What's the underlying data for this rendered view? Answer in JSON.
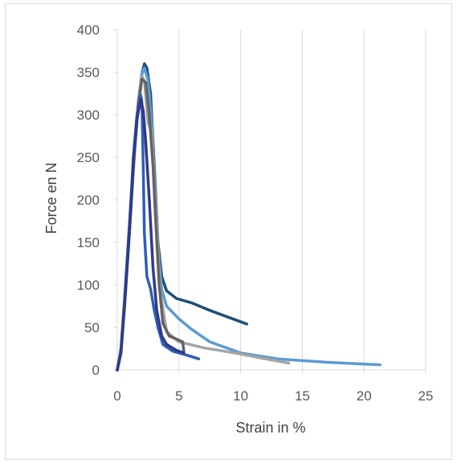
{
  "chart_data": {
    "type": "line",
    "title": "",
    "xlabel": "Strain in %",
    "ylabel": "Force en N",
    "xlim": [
      0,
      25
    ],
    "ylim": [
      0,
      400
    ],
    "xticks": [
      0,
      5,
      10,
      15,
      20,
      25
    ],
    "yticks": [
      0,
      50,
      100,
      150,
      200,
      250,
      300,
      350,
      400
    ],
    "xtick_labels": [
      "0",
      "5",
      "10",
      "15",
      "20",
      "25"
    ],
    "ytick_labels": [
      "0",
      "50",
      "100",
      "150",
      "200",
      "250",
      "300",
      "350",
      "400"
    ],
    "grid": "vertical",
    "legend": "none",
    "series": [
      {
        "color": "#1f4e79",
        "values": [
          [
            0,
            0
          ],
          [
            0.3,
            25
          ],
          [
            0.6,
            85
          ],
          [
            1.0,
            175
          ],
          [
            1.4,
            265
          ],
          [
            1.7,
            315
          ],
          [
            2.0,
            348
          ],
          [
            2.2,
            360
          ],
          [
            2.4,
            355
          ],
          [
            2.7,
            325
          ],
          [
            3.0,
            240
          ],
          [
            3.3,
            150
          ],
          [
            3.6,
            110
          ],
          [
            4.0,
            93
          ],
          [
            4.8,
            84
          ],
          [
            6.0,
            79
          ],
          [
            7.5,
            70
          ],
          [
            9.0,
            62
          ],
          [
            10.5,
            54
          ]
        ]
      },
      {
        "color": "#5b9bd5",
        "values": [
          [
            0,
            0
          ],
          [
            0.3,
            22
          ],
          [
            0.6,
            80
          ],
          [
            1.0,
            170
          ],
          [
            1.4,
            262
          ],
          [
            1.7,
            315
          ],
          [
            2.0,
            348
          ],
          [
            2.2,
            355
          ],
          [
            2.5,
            340
          ],
          [
            2.8,
            290
          ],
          [
            3.0,
            220
          ],
          [
            3.3,
            140
          ],
          [
            3.6,
            95
          ],
          [
            4.0,
            75
          ],
          [
            5.0,
            60
          ],
          [
            6.0,
            48
          ],
          [
            7.5,
            33
          ],
          [
            10,
            20
          ],
          [
            13,
            13
          ],
          [
            17,
            9
          ],
          [
            21.3,
            6
          ]
        ]
      },
      {
        "color": "#a5a5a5",
        "values": [
          [
            0,
            0
          ],
          [
            0.3,
            22
          ],
          [
            0.6,
            80
          ],
          [
            1.0,
            168
          ],
          [
            1.4,
            260
          ],
          [
            1.7,
            315
          ],
          [
            2.0,
            345
          ],
          [
            2.2,
            340
          ],
          [
            2.5,
            290
          ],
          [
            2.8,
            280
          ],
          [
            3.1,
            200
          ],
          [
            3.5,
            90
          ],
          [
            4.0,
            45
          ],
          [
            5.0,
            33
          ],
          [
            7.0,
            26
          ],
          [
            9.5,
            20
          ],
          [
            12,
            13
          ],
          [
            13.9,
            8
          ]
        ]
      },
      {
        "color": "#636363",
        "values": [
          [
            0,
            0
          ],
          [
            0.3,
            20
          ],
          [
            0.6,
            75
          ],
          [
            1.0,
            165
          ],
          [
            1.4,
            255
          ],
          [
            1.7,
            310
          ],
          [
            2.0,
            342
          ],
          [
            2.3,
            338
          ],
          [
            2.6,
            300
          ],
          [
            2.9,
            240
          ],
          [
            3.1,
            180
          ],
          [
            3.4,
            100
          ],
          [
            3.7,
            55
          ],
          [
            4.2,
            40
          ],
          [
            5.3,
            33
          ],
          [
            5.4,
            22
          ]
        ]
      },
      {
        "color": "#2e5eb8",
        "values": [
          [
            0,
            0
          ],
          [
            0.3,
            22
          ],
          [
            0.6,
            80
          ],
          [
            1.0,
            170
          ],
          [
            1.3,
            250
          ],
          [
            1.6,
            300
          ],
          [
            1.9,
            323
          ],
          [
            2.0,
            315
          ],
          [
            2.1,
            240
          ],
          [
            2.2,
            160
          ],
          [
            2.4,
            110
          ],
          [
            2.7,
            95
          ],
          [
            3.0,
            70
          ],
          [
            3.3,
            50
          ],
          [
            3.7,
            30
          ],
          [
            4.5,
            22
          ],
          [
            5.5,
            18
          ],
          [
            6.6,
            13
          ]
        ]
      },
      {
        "color": "#2f3a8a",
        "values": [
          [
            0,
            0
          ],
          [
            0.3,
            20
          ],
          [
            0.6,
            78
          ],
          [
            1.0,
            165
          ],
          [
            1.3,
            245
          ],
          [
            1.6,
            295
          ],
          [
            1.9,
            318
          ],
          [
            2.1,
            305
          ],
          [
            2.3,
            270
          ],
          [
            2.6,
            200
          ],
          [
            2.9,
            120
          ],
          [
            3.2,
            70
          ],
          [
            3.6,
            40
          ],
          [
            4.0,
            30
          ],
          [
            4.8,
            23
          ],
          [
            5.4,
            20
          ]
        ]
      }
    ]
  }
}
